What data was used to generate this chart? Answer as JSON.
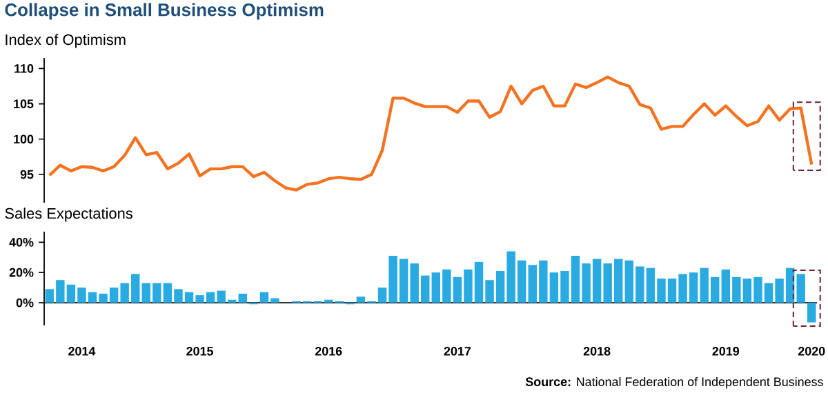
{
  "chart_data": [
    {
      "type": "line",
      "title": "Collapse in Small Business Optimism",
      "ylabel": "Index of Optimism",
      "color": "#f47321",
      "categories": [
        null,
        null,
        null,
        "2014",
        null,
        null,
        null,
        null,
        null,
        null,
        null,
        null,
        null,
        null,
        "2015",
        null,
        null,
        null,
        null,
        null,
        null,
        null,
        null,
        null,
        null,
        null,
        "2016",
        null,
        null,
        null,
        null,
        null,
        null,
        null,
        null,
        null,
        null,
        null,
        "2017",
        null,
        null,
        null,
        null,
        null,
        null,
        null,
        null,
        null,
        null,
        null,
        null,
        "2018",
        null,
        null,
        null,
        null,
        null,
        null,
        null,
        null,
        null,
        null,
        null,
        "2019",
        null,
        null,
        null,
        null,
        null,
        null,
        null,
        "2020"
      ],
      "values": [
        94.9,
        96.3,
        95.5,
        96.1,
        96.0,
        95.5,
        96.1,
        97.7,
        100.2,
        97.8,
        98.1,
        95.8,
        96.6,
        97.9,
        94.8,
        95.8,
        95.8,
        96.1,
        96.1,
        94.7,
        95.3,
        94.1,
        93.1,
        92.8,
        93.6,
        93.8,
        94.4,
        94.6,
        94.4,
        94.3,
        95.0,
        98.4,
        105.8,
        105.8,
        105.1,
        104.6,
        104.6,
        104.6,
        103.8,
        105.4,
        105.4,
        103.1,
        103.9,
        107.5,
        105.0,
        106.9,
        107.5,
        104.7,
        104.7,
        107.8,
        107.3,
        108.0,
        108.8,
        108.0,
        107.5,
        104.9,
        104.4,
        101.4,
        101.8,
        101.8,
        103.5,
        105.0,
        103.4,
        104.7,
        103.2,
        101.9,
        102.5,
        104.7,
        102.7,
        104.3,
        104.4,
        96.4
      ],
      "ylim": [
        91,
        111.5
      ],
      "yticks": [
        95,
        100,
        105,
        110
      ],
      "tick_labels": "y"
    },
    {
      "type": "bar",
      "ylabel": "Sales Expectations",
      "color": "#29abe2",
      "categories": [
        null,
        null,
        null,
        "2014",
        null,
        null,
        null,
        null,
        null,
        null,
        null,
        null,
        null,
        null,
        "2015",
        null,
        null,
        null,
        null,
        null,
        null,
        null,
        null,
        null,
        null,
        null,
        "2016",
        null,
        null,
        null,
        null,
        null,
        null,
        null,
        null,
        null,
        null,
        null,
        "2017",
        null,
        null,
        null,
        null,
        null,
        null,
        null,
        null,
        null,
        null,
        null,
        null,
        "2018",
        null,
        null,
        null,
        null,
        null,
        null,
        null,
        null,
        null,
        null,
        null,
        "2019",
        null,
        null,
        null,
        null,
        null,
        null,
        null,
        "2020"
      ],
      "values": [
        9,
        15,
        12,
        10,
        7,
        6,
        10,
        13,
        19,
        13,
        13,
        13,
        9,
        7,
        5,
        7,
        8,
        2,
        6,
        -1,
        7,
        3,
        0,
        1,
        1,
        1,
        2,
        1,
        -1,
        4,
        1,
        10,
        31,
        29,
        26,
        18,
        20,
        22,
        17,
        22,
        27,
        15,
        21,
        34,
        28,
        25,
        28,
        20,
        21,
        31,
        26,
        29,
        26,
        29,
        28,
        24,
        23,
        16,
        16,
        19,
        20,
        23,
        17,
        22,
        17,
        16,
        17,
        13,
        16,
        23,
        19,
        -13
      ],
      "ylim": [
        -15,
        47
      ],
      "yticks": [
        {
          "value": 0,
          "label": "0%"
        },
        {
          "value": 20,
          "label": "20%"
        },
        {
          "value": 40,
          "label": "40%"
        }
      ],
      "annotations": [
        "**Source:** National Federation of Independent Business"
      ]
    }
  ]
}
